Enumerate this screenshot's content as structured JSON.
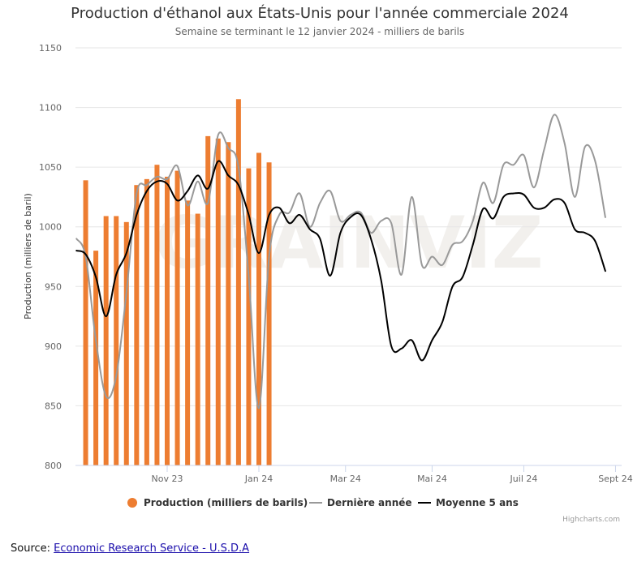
{
  "chart_data": {
    "type": "bar+line",
    "title": "Production d'éthanol aux États-Unis pour l'année commerciale 2024",
    "subtitle": "Semaine se terminant le 12 janvier 2024 - milliers de barils",
    "ylabel": "Production (milliers de baril)",
    "xlabel": "",
    "ylim": [
      800,
      1150
    ],
    "yticks": [
      800,
      850,
      900,
      950,
      1000,
      1050,
      1100,
      1150
    ],
    "xticks": [
      {
        "label": "Nov 23",
        "week": 9
      },
      {
        "label": "Jan 24",
        "week": 18
      },
      {
        "label": "Mar 24",
        "week": 26.5
      },
      {
        "label": "Mai 24",
        "week": 35
      },
      {
        "label": "Juil 24",
        "week": 44
      },
      {
        "label": "Sept 24",
        "week": 53
      }
    ],
    "grid": true,
    "legend_position": "bottom-center",
    "series": [
      {
        "name": "Production (milliers de barils)",
        "kind": "bar",
        "color": "#ed7d31",
        "points": [
          [
            1,
            1039
          ],
          [
            2,
            980
          ],
          [
            3,
            1009
          ],
          [
            4,
            1009
          ],
          [
            5,
            1004
          ],
          [
            6,
            1035
          ],
          [
            7,
            1040
          ],
          [
            8,
            1052
          ],
          [
            9,
            1042
          ],
          [
            10,
            1047
          ],
          [
            11,
            1022
          ],
          [
            12,
            1011
          ],
          [
            13,
            1076
          ],
          [
            14,
            1074
          ],
          [
            15,
            1071
          ],
          [
            16,
            1107
          ],
          [
            17,
            1049
          ],
          [
            18,
            1062
          ],
          [
            19,
            1054
          ]
        ]
      },
      {
        "name": "Dernière année",
        "kind": "line",
        "color": "#999999",
        "points": [
          [
            0.1,
            990
          ],
          [
            1,
            975
          ],
          [
            2,
            905
          ],
          [
            3,
            858
          ],
          [
            4,
            875
          ],
          [
            5,
            945
          ],
          [
            6,
            1028
          ],
          [
            7,
            1035
          ],
          [
            8,
            1042
          ],
          [
            9,
            1040
          ],
          [
            10,
            1051
          ],
          [
            11,
            1018
          ],
          [
            12,
            1038
          ],
          [
            13,
            1020
          ],
          [
            14,
            1077
          ],
          [
            15,
            1066
          ],
          [
            16,
            1050
          ],
          [
            17,
            958
          ],
          [
            18,
            848
          ],
          [
            19,
            975
          ],
          [
            20,
            1010
          ],
          [
            21,
            1012
          ],
          [
            22,
            1028
          ],
          [
            23,
            1000
          ],
          [
            24,
            1020
          ],
          [
            25,
            1030
          ],
          [
            26,
            1005
          ],
          [
            27,
            1010
          ],
          [
            28,
            1012
          ],
          [
            29,
            995
          ],
          [
            30,
            1005
          ],
          [
            31,
            1003
          ],
          [
            32,
            960
          ],
          [
            33,
            1025
          ],
          [
            34,
            968
          ],
          [
            35,
            975
          ],
          [
            36,
            968
          ],
          [
            37,
            985
          ],
          [
            38,
            988
          ],
          [
            39,
            1005
          ],
          [
            40,
            1037
          ],
          [
            41,
            1020
          ],
          [
            42,
            1052
          ],
          [
            43,
            1052
          ],
          [
            44,
            1060
          ],
          [
            45,
            1033
          ],
          [
            46,
            1065
          ],
          [
            47,
            1094
          ],
          [
            48,
            1070
          ],
          [
            49,
            1025
          ],
          [
            50,
            1067
          ],
          [
            51,
            1055
          ],
          [
            52,
            1008
          ]
        ]
      },
      {
        "name": "Moyenne 5 ans",
        "kind": "line",
        "color": "#000000",
        "points": [
          [
            0.1,
            980
          ],
          [
            1,
            977
          ],
          [
            2,
            958
          ],
          [
            3,
            925
          ],
          [
            4,
            960
          ],
          [
            5,
            978
          ],
          [
            6,
            1010
          ],
          [
            7,
            1030
          ],
          [
            8,
            1038
          ],
          [
            9,
            1036
          ],
          [
            10,
            1022
          ],
          [
            11,
            1030
          ],
          [
            12,
            1043
          ],
          [
            13,
            1032
          ],
          [
            14,
            1055
          ],
          [
            15,
            1043
          ],
          [
            16,
            1035
          ],
          [
            17,
            1010
          ],
          [
            18,
            978
          ],
          [
            19,
            1010
          ],
          [
            20,
            1016
          ],
          [
            21,
            1003
          ],
          [
            22,
            1010
          ],
          [
            23,
            998
          ],
          [
            24,
            990
          ],
          [
            25,
            959
          ],
          [
            26,
            995
          ],
          [
            27,
            1008
          ],
          [
            28,
            1010
          ],
          [
            29,
            990
          ],
          [
            30,
            955
          ],
          [
            31,
            900
          ],
          [
            32,
            898
          ],
          [
            33,
            905
          ],
          [
            34,
            888
          ],
          [
            35,
            905
          ],
          [
            36,
            920
          ],
          [
            37,
            950
          ],
          [
            38,
            958
          ],
          [
            39,
            985
          ],
          [
            40,
            1015
          ],
          [
            41,
            1007
          ],
          [
            42,
            1025
          ],
          [
            43,
            1028
          ],
          [
            44,
            1027
          ],
          [
            45,
            1016
          ],
          [
            46,
            1016
          ],
          [
            47,
            1023
          ],
          [
            48,
            1020
          ],
          [
            49,
            998
          ],
          [
            50,
            995
          ],
          [
            51,
            988
          ],
          [
            52,
            963
          ]
        ]
      }
    ]
  },
  "watermark": "GRAINVIZ",
  "credits": "Highcharts.com",
  "source": {
    "prefix": "Source: ",
    "link_text": "Economic Research Service - U.S.D.A"
  }
}
